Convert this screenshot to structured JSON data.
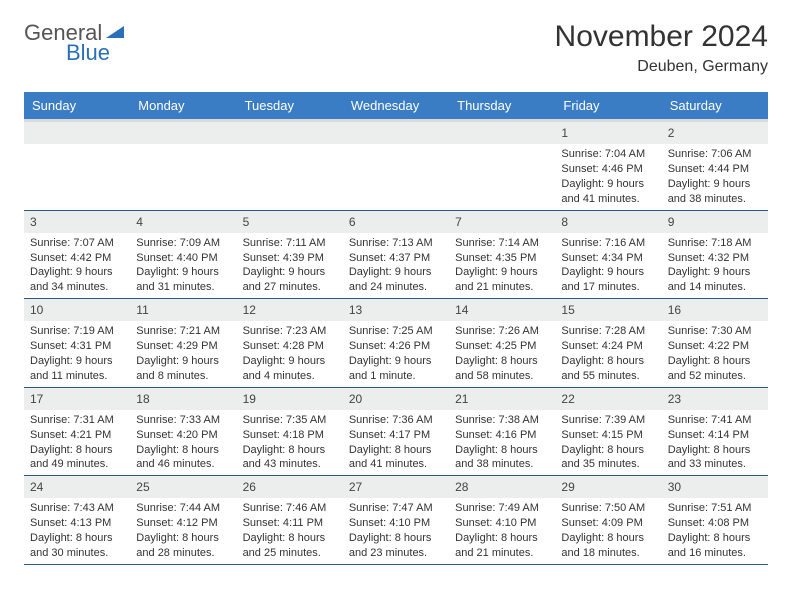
{
  "logo": {
    "text_main": "General",
    "text_blue": "Blue",
    "triangle_color": "#2a70b8"
  },
  "title": {
    "month": "November 2024",
    "location": "Deuben, Germany"
  },
  "colors": {
    "header_bg": "#3b7dc4",
    "header_text": "#ffffff",
    "day_number_bg": "#eceded",
    "row_border": "#2a5a8a",
    "text": "#333333"
  },
  "day_headers": [
    "Sunday",
    "Monday",
    "Tuesday",
    "Wednesday",
    "Thursday",
    "Friday",
    "Saturday"
  ],
  "weeks": [
    [
      {
        "num": "",
        "sunrise": "",
        "sunset": "",
        "daylight": ""
      },
      {
        "num": "",
        "sunrise": "",
        "sunset": "",
        "daylight": ""
      },
      {
        "num": "",
        "sunrise": "",
        "sunset": "",
        "daylight": ""
      },
      {
        "num": "",
        "sunrise": "",
        "sunset": "",
        "daylight": ""
      },
      {
        "num": "",
        "sunrise": "",
        "sunset": "",
        "daylight": ""
      },
      {
        "num": "1",
        "sunrise": "Sunrise: 7:04 AM",
        "sunset": "Sunset: 4:46 PM",
        "daylight": "Daylight: 9 hours and 41 minutes."
      },
      {
        "num": "2",
        "sunrise": "Sunrise: 7:06 AM",
        "sunset": "Sunset: 4:44 PM",
        "daylight": "Daylight: 9 hours and 38 minutes."
      }
    ],
    [
      {
        "num": "3",
        "sunrise": "Sunrise: 7:07 AM",
        "sunset": "Sunset: 4:42 PM",
        "daylight": "Daylight: 9 hours and 34 minutes."
      },
      {
        "num": "4",
        "sunrise": "Sunrise: 7:09 AM",
        "sunset": "Sunset: 4:40 PM",
        "daylight": "Daylight: 9 hours and 31 minutes."
      },
      {
        "num": "5",
        "sunrise": "Sunrise: 7:11 AM",
        "sunset": "Sunset: 4:39 PM",
        "daylight": "Daylight: 9 hours and 27 minutes."
      },
      {
        "num": "6",
        "sunrise": "Sunrise: 7:13 AM",
        "sunset": "Sunset: 4:37 PM",
        "daylight": "Daylight: 9 hours and 24 minutes."
      },
      {
        "num": "7",
        "sunrise": "Sunrise: 7:14 AM",
        "sunset": "Sunset: 4:35 PM",
        "daylight": "Daylight: 9 hours and 21 minutes."
      },
      {
        "num": "8",
        "sunrise": "Sunrise: 7:16 AM",
        "sunset": "Sunset: 4:34 PM",
        "daylight": "Daylight: 9 hours and 17 minutes."
      },
      {
        "num": "9",
        "sunrise": "Sunrise: 7:18 AM",
        "sunset": "Sunset: 4:32 PM",
        "daylight": "Daylight: 9 hours and 14 minutes."
      }
    ],
    [
      {
        "num": "10",
        "sunrise": "Sunrise: 7:19 AM",
        "sunset": "Sunset: 4:31 PM",
        "daylight": "Daylight: 9 hours and 11 minutes."
      },
      {
        "num": "11",
        "sunrise": "Sunrise: 7:21 AM",
        "sunset": "Sunset: 4:29 PM",
        "daylight": "Daylight: 9 hours and 8 minutes."
      },
      {
        "num": "12",
        "sunrise": "Sunrise: 7:23 AM",
        "sunset": "Sunset: 4:28 PM",
        "daylight": "Daylight: 9 hours and 4 minutes."
      },
      {
        "num": "13",
        "sunrise": "Sunrise: 7:25 AM",
        "sunset": "Sunset: 4:26 PM",
        "daylight": "Daylight: 9 hours and 1 minute."
      },
      {
        "num": "14",
        "sunrise": "Sunrise: 7:26 AM",
        "sunset": "Sunset: 4:25 PM",
        "daylight": "Daylight: 8 hours and 58 minutes."
      },
      {
        "num": "15",
        "sunrise": "Sunrise: 7:28 AM",
        "sunset": "Sunset: 4:24 PM",
        "daylight": "Daylight: 8 hours and 55 minutes."
      },
      {
        "num": "16",
        "sunrise": "Sunrise: 7:30 AM",
        "sunset": "Sunset: 4:22 PM",
        "daylight": "Daylight: 8 hours and 52 minutes."
      }
    ],
    [
      {
        "num": "17",
        "sunrise": "Sunrise: 7:31 AM",
        "sunset": "Sunset: 4:21 PM",
        "daylight": "Daylight: 8 hours and 49 minutes."
      },
      {
        "num": "18",
        "sunrise": "Sunrise: 7:33 AM",
        "sunset": "Sunset: 4:20 PM",
        "daylight": "Daylight: 8 hours and 46 minutes."
      },
      {
        "num": "19",
        "sunrise": "Sunrise: 7:35 AM",
        "sunset": "Sunset: 4:18 PM",
        "daylight": "Daylight: 8 hours and 43 minutes."
      },
      {
        "num": "20",
        "sunrise": "Sunrise: 7:36 AM",
        "sunset": "Sunset: 4:17 PM",
        "daylight": "Daylight: 8 hours and 41 minutes."
      },
      {
        "num": "21",
        "sunrise": "Sunrise: 7:38 AM",
        "sunset": "Sunset: 4:16 PM",
        "daylight": "Daylight: 8 hours and 38 minutes."
      },
      {
        "num": "22",
        "sunrise": "Sunrise: 7:39 AM",
        "sunset": "Sunset: 4:15 PM",
        "daylight": "Daylight: 8 hours and 35 minutes."
      },
      {
        "num": "23",
        "sunrise": "Sunrise: 7:41 AM",
        "sunset": "Sunset: 4:14 PM",
        "daylight": "Daylight: 8 hours and 33 minutes."
      }
    ],
    [
      {
        "num": "24",
        "sunrise": "Sunrise: 7:43 AM",
        "sunset": "Sunset: 4:13 PM",
        "daylight": "Daylight: 8 hours and 30 minutes."
      },
      {
        "num": "25",
        "sunrise": "Sunrise: 7:44 AM",
        "sunset": "Sunset: 4:12 PM",
        "daylight": "Daylight: 8 hours and 28 minutes."
      },
      {
        "num": "26",
        "sunrise": "Sunrise: 7:46 AM",
        "sunset": "Sunset: 4:11 PM",
        "daylight": "Daylight: 8 hours and 25 minutes."
      },
      {
        "num": "27",
        "sunrise": "Sunrise: 7:47 AM",
        "sunset": "Sunset: 4:10 PM",
        "daylight": "Daylight: 8 hours and 23 minutes."
      },
      {
        "num": "28",
        "sunrise": "Sunrise: 7:49 AM",
        "sunset": "Sunset: 4:10 PM",
        "daylight": "Daylight: 8 hours and 21 minutes."
      },
      {
        "num": "29",
        "sunrise": "Sunrise: 7:50 AM",
        "sunset": "Sunset: 4:09 PM",
        "daylight": "Daylight: 8 hours and 18 minutes."
      },
      {
        "num": "30",
        "sunrise": "Sunrise: 7:51 AM",
        "sunset": "Sunset: 4:08 PM",
        "daylight": "Daylight: 8 hours and 16 minutes."
      }
    ]
  ]
}
